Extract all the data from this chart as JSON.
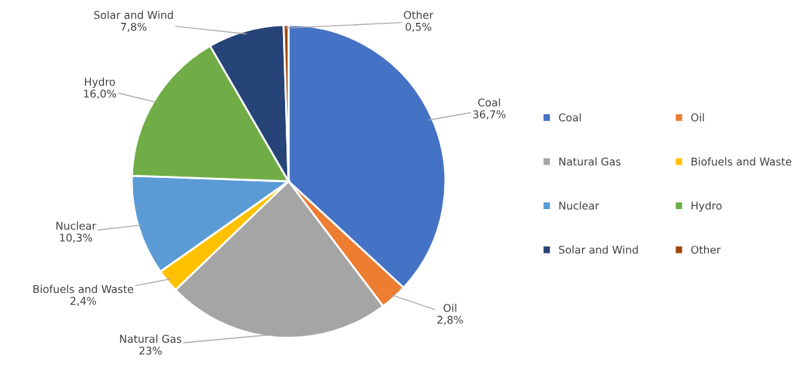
{
  "chart_data": {
    "type": "pie",
    "categories": [
      "Coal",
      "Oil",
      "Natural Gas",
      "Biofuels and Waste",
      "Nuclear",
      "Hydro",
      "Solar and Wind",
      "Other"
    ],
    "values": [
      36.7,
      2.8,
      23,
      2.4,
      10.3,
      16.0,
      7.8,
      0.5
    ],
    "value_labels": [
      "36,7%",
      "2,8%",
      "23%",
      "2,4%",
      "10,3%",
      "16,0%",
      "7,8%",
      "0,5%"
    ],
    "colors": [
      "#4472c4",
      "#ed7d31",
      "#a5a5a5",
      "#ffc000",
      "#5b9bd5",
      "#70ad47",
      "#264478",
      "#9e480e"
    ],
    "legend": "right"
  }
}
